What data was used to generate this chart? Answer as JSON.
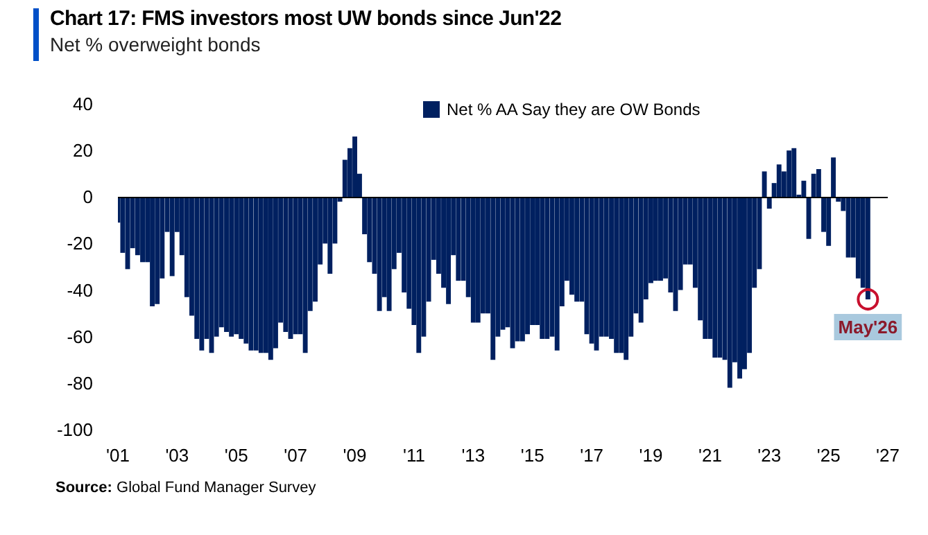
{
  "chart_data": {
    "type": "bar",
    "title": "Chart 17: FMS investors most UW bonds since Jun'22",
    "subtitle": "Net % overweight bonds",
    "annotations": [
      {
        "text": "May'26",
        "x": "2026-05",
        "y": -44
      },
      "Source: Global Fund Manager Survey"
    ],
    "x": [
      "2001-01",
      "2001-03",
      "2001-05",
      "2001-07",
      "2001-09",
      "2001-11",
      "2002-01",
      "2002-03",
      "2002-05",
      "2002-07",
      "2002-09",
      "2002-11",
      "2003-01",
      "2003-03",
      "2003-05",
      "2003-07",
      "2003-09",
      "2003-11",
      "2004-01",
      "2004-03",
      "2004-05",
      "2004-07",
      "2004-09",
      "2004-11",
      "2005-01",
      "2005-03",
      "2005-05",
      "2005-07",
      "2005-09",
      "2005-11",
      "2006-01",
      "2006-03",
      "2006-05",
      "2006-07",
      "2006-09",
      "2006-11",
      "2007-01",
      "2007-03",
      "2007-05",
      "2007-07",
      "2007-09",
      "2007-11",
      "2008-01",
      "2008-03",
      "2008-05",
      "2008-07",
      "2008-09",
      "2008-11",
      "2009-01",
      "2009-03",
      "2009-05",
      "2009-07",
      "2009-09",
      "2009-11",
      "2010-01",
      "2010-03",
      "2010-05",
      "2010-07",
      "2010-09",
      "2010-11",
      "2011-01",
      "2011-03",
      "2011-05",
      "2011-07",
      "2011-09",
      "2011-11",
      "2012-01",
      "2012-03",
      "2012-05",
      "2012-07",
      "2012-09",
      "2012-11",
      "2013-01",
      "2013-03",
      "2013-05",
      "2013-07",
      "2013-09",
      "2013-11",
      "2014-01",
      "2014-03",
      "2014-05",
      "2014-07",
      "2014-09",
      "2014-11",
      "2015-01",
      "2015-03",
      "2015-05",
      "2015-07",
      "2015-09",
      "2015-11",
      "2016-01",
      "2016-03",
      "2016-05",
      "2016-07",
      "2016-09",
      "2016-11",
      "2017-01",
      "2017-03",
      "2017-05",
      "2017-07",
      "2017-09",
      "2017-11",
      "2018-01",
      "2018-03",
      "2018-05",
      "2018-07",
      "2018-09",
      "2018-11",
      "2019-01",
      "2019-03",
      "2019-05",
      "2019-07",
      "2019-09",
      "2019-11",
      "2020-01",
      "2020-03",
      "2020-05",
      "2020-07",
      "2020-09",
      "2020-11",
      "2021-01",
      "2021-03",
      "2021-05",
      "2021-07",
      "2021-09",
      "2021-11",
      "2022-01",
      "2022-03",
      "2022-05",
      "2022-07",
      "2022-09",
      "2022-11",
      "2023-01",
      "2023-03",
      "2023-05",
      "2023-07",
      "2023-09",
      "2023-11",
      "2024-01",
      "2024-03",
      "2024-05",
      "2024-07",
      "2024-09",
      "2024-11",
      "2025-01",
      "2025-03",
      "2025-05",
      "2025-07",
      "2025-09",
      "2025-11",
      "2026-01",
      "2026-03",
      "2026-05"
    ],
    "series": [
      {
        "name": "Net % AA Say they are OW Bonds",
        "color": "#002060",
        "values": [
          -11,
          -24,
          -31,
          -22,
          -25,
          -28,
          -28,
          -47,
          -46,
          -35,
          -15,
          -34,
          -15,
          -25,
          -43,
          -51,
          -61,
          -66,
          -61,
          -67,
          -60,
          -56,
          -58,
          -60,
          -59,
          -61,
          -63,
          -66,
          -66,
          -67,
          -67,
          -70,
          -65,
          -54,
          -58,
          -61,
          -59,
          -59,
          -67,
          -49,
          -45,
          -29,
          -20,
          -33,
          -20,
          -2,
          16,
          21,
          26,
          10,
          -16,
          -28,
          -33,
          -49,
          -43,
          -49,
          -31,
          -24,
          -41,
          -48,
          -55,
          -67,
          -60,
          -45,
          -27,
          -33,
          -39,
          -46,
          -25,
          -36,
          -36,
          -43,
          -54,
          -54,
          -50,
          -50,
          -70,
          -60,
          -57,
          -56,
          -65,
          -62,
          -62,
          -59,
          -55,
          -55,
          -61,
          -61,
          -60,
          -66,
          -47,
          -36,
          -42,
          -45,
          -45,
          -59,
          -63,
          -66,
          -60,
          -60,
          -61,
          -67,
          -67,
          -70,
          -60,
          -50,
          -54,
          -44,
          -37,
          -36,
          -36,
          -35,
          -41,
          -49,
          -40,
          -29,
          -29,
          -39,
          -53,
          -61,
          -61,
          -69,
          -69,
          -70,
          -82,
          -71,
          -78,
          -74,
          -67,
          -39,
          -31,
          11,
          -5,
          6,
          14,
          11,
          20,
          21,
          1,
          7,
          -18,
          10,
          12,
          -15,
          -21,
          17,
          -2,
          -6,
          -26,
          -26,
          -35,
          -39,
          -44
        ]
      }
    ],
    "xlim": [
      "2001-01",
      "2027-01"
    ],
    "xticks": [
      {
        "value": "2001-01",
        "label": "'01"
      },
      {
        "value": "2003-01",
        "label": "'03"
      },
      {
        "value": "2005-01",
        "label": "'05"
      },
      {
        "value": "2007-01",
        "label": "'07"
      },
      {
        "value": "2009-01",
        "label": "'09"
      },
      {
        "value": "2011-01",
        "label": "'11"
      },
      {
        "value": "2013-01",
        "label": "'13"
      },
      {
        "value": "2015-01",
        "label": "'15"
      },
      {
        "value": "2017-01",
        "label": "'17"
      },
      {
        "value": "2019-01",
        "label": "'19"
      },
      {
        "value": "2021-01",
        "label": "'21"
      },
      {
        "value": "2023-01",
        "label": "'23"
      },
      {
        "value": "2025-01",
        "label": "'25"
      },
      {
        "value": "2027-01",
        "label": "'27"
      }
    ],
    "ylim": [
      -100,
      40
    ],
    "yticks": [
      -100,
      -80,
      -60,
      -40,
      -20,
      0,
      20,
      40
    ],
    "ref_lines": [
      {
        "axis": "y",
        "value": 0,
        "color": "#000000"
      }
    ],
    "grid": false,
    "legend": "top"
  }
}
